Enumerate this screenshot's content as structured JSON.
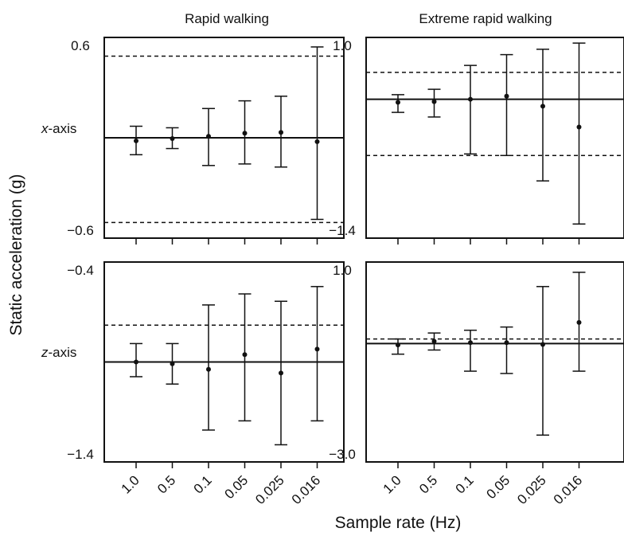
{
  "figure": {
    "ylabel": "Static acceleration (g)",
    "xlabel": "Sample rate (Hz)",
    "columns": [
      "Rapid walking",
      "Extreme rapid walking"
    ],
    "rows": [
      {
        "axis_letter": "x",
        "suffix": "-axis"
      },
      {
        "axis_letter": "z",
        "suffix": "-axis"
      }
    ]
  },
  "chart_data": [
    {
      "type": "scatter",
      "column": "Rapid walking",
      "row": "x-axis",
      "x": [
        "1.0",
        "0.5",
        "0.1",
        "0.05",
        "0.025",
        "0.016"
      ],
      "series": [
        {
          "values": [
            -0.02,
            -0.005,
            0.01,
            0.03,
            0.035,
            -0.025
          ],
          "err_low": [
            -0.11,
            -0.07,
            -0.18,
            -0.17,
            -0.19,
            -0.53
          ],
          "err_high": [
            0.075,
            0.065,
            0.19,
            0.24,
            0.27,
            0.59
          ]
        }
      ],
      "reference_line": 0,
      "dashed_limits": [
        0.53,
        -0.55
      ],
      "ylim": [
        -0.6,
        0.6
      ],
      "ytick_labels": [
        "0.6",
        "−0.6"
      ]
    },
    {
      "type": "scatter",
      "column": "Extreme rapid walking",
      "row": "x-axis",
      "x": [
        "1.0",
        "0.5",
        "0.1",
        "0.05",
        "0.025",
        "0.016"
      ],
      "series": [
        {
          "values": [
            0.26,
            0.27,
            0.3,
            0.34,
            0.21,
            -0.06
          ],
          "err_low": [
            0.13,
            0.07,
            -0.41,
            -0.43,
            -0.76,
            -1.32
          ],
          "err_high": [
            0.36,
            0.43,
            0.74,
            0.88,
            0.95,
            1.03
          ]
        }
      ],
      "reference_line": 0.3,
      "dashed_limits": [
        0.65,
        -0.43
      ],
      "ylim": [
        -1.4,
        1.0
      ],
      "ytick_labels": [
        "1.0",
        "−1.4"
      ]
    },
    {
      "type": "scatter",
      "column": "Rapid walking",
      "row": "z-axis",
      "x": [
        "1.0",
        "0.5",
        "0.1",
        "0.05",
        "0.025",
        "0.016"
      ],
      "series": [
        {
          "values": [
            -0.9,
            -0.91,
            -0.94,
            -0.86,
            -0.96,
            -0.83
          ],
          "err_low": [
            -0.98,
            -1.02,
            -1.27,
            -1.22,
            -1.35,
            -1.22
          ],
          "err_high": [
            -0.8,
            -0.8,
            -0.59,
            -0.53,
            -0.57,
            -0.49
          ]
        }
      ],
      "reference_line": -0.9,
      "dashed_limits": [
        -0.7
      ],
      "ylim": [
        -1.4,
        -0.4
      ],
      "ytick_labels": [
        "−0.4",
        "−1.4"
      ]
    },
    {
      "type": "scatter",
      "column": "Extreme rapid walking",
      "row": "z-axis",
      "x": [
        "1.0",
        "0.5",
        "0.1",
        "0.05",
        "0.025",
        "0.016"
      ],
      "series": [
        {
          "values": [
            -0.63,
            -0.55,
            -0.58,
            -0.58,
            -0.62,
            -0.14
          ],
          "err_low": [
            -0.83,
            -0.74,
            -1.2,
            -1.25,
            -2.59,
            -1.2
          ],
          "err_high": [
            -0.5,
            -0.37,
            -0.31,
            -0.24,
            0.64,
            0.95
          ]
        }
      ],
      "reference_line": -0.6,
      "dashed_limits": [
        -0.5
      ],
      "ylim": [
        -3.0,
        1.0
      ],
      "ytick_labels": [
        "1.0",
        "−3.0"
      ]
    }
  ]
}
